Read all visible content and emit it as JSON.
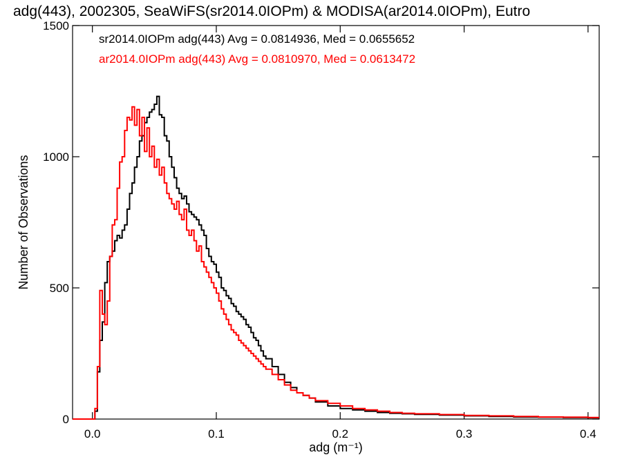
{
  "chart_data": {
    "type": "line",
    "title": "adg(443), 2002305, SeaWiFS(sr2014.0IOPm) & MODISA(ar2014.0IOPm), Eutro",
    "xlabel": "adg (m⁻¹)",
    "ylabel": "Number of Observations",
    "xlim": [
      -0.016,
      0.409
    ],
    "ylim": [
      0,
      1500
    ],
    "x_ticks": [
      0.0,
      0.1,
      0.2,
      0.3,
      0.4
    ],
    "x_tick_labels": [
      "0.0",
      "0.1",
      "0.2",
      "0.3",
      "0.4"
    ],
    "y_ticks": [
      0,
      500,
      1000,
      1500
    ],
    "y_tick_labels": [
      "0",
      "500",
      "1000",
      "1500"
    ],
    "grid": false,
    "legend_position": "top-left",
    "series": [
      {
        "name": "sr2014.0IOPm adg(443) Avg = 0.0814936, Med = 0.0655652",
        "color": "#000000",
        "x": [
          -0.016,
          0.0,
          0.002,
          0.004,
          0.006,
          0.008,
          0.01,
          0.012,
          0.014,
          0.016,
          0.018,
          0.02,
          0.022,
          0.024,
          0.026,
          0.028,
          0.03,
          0.032,
          0.034,
          0.036,
          0.038,
          0.04,
          0.042,
          0.044,
          0.046,
          0.048,
          0.05,
          0.052,
          0.054,
          0.056,
          0.058,
          0.06,
          0.062,
          0.064,
          0.066,
          0.068,
          0.07,
          0.072,
          0.074,
          0.076,
          0.078,
          0.08,
          0.082,
          0.084,
          0.086,
          0.088,
          0.09,
          0.092,
          0.094,
          0.096,
          0.098,
          0.1,
          0.102,
          0.104,
          0.106,
          0.108,
          0.11,
          0.112,
          0.114,
          0.116,
          0.118,
          0.12,
          0.122,
          0.124,
          0.126,
          0.128,
          0.13,
          0.132,
          0.134,
          0.136,
          0.138,
          0.14,
          0.145,
          0.15,
          0.155,
          0.16,
          0.165,
          0.17,
          0.175,
          0.18,
          0.19,
          0.2,
          0.21,
          0.22,
          0.23,
          0.24,
          0.25,
          0.26,
          0.28,
          0.3,
          0.32,
          0.34,
          0.36,
          0.38,
          0.4,
          0.409
        ],
        "values": [
          0,
          0,
          30,
          180,
          300,
          370,
          520,
          600,
          620,
          640,
          680,
          700,
          690,
          720,
          740,
          800,
          860,
          900,
          960,
          1000,
          1060,
          1080,
          1130,
          1150,
          1170,
          1180,
          1200,
          1230,
          1160,
          1150,
          1080,
          1060,
          1000,
          960,
          920,
          880,
          860,
          840,
          850,
          820,
          790,
          780,
          770,
          760,
          740,
          720,
          700,
          650,
          620,
          600,
          590,
          560,
          540,
          500,
          490,
          470,
          460,
          440,
          430,
          410,
          400,
          390,
          380,
          360,
          350,
          330,
          310,
          300,
          280,
          260,
          240,
          230,
          200,
          170,
          140,
          120,
          100,
          90,
          80,
          65,
          50,
          40,
          35,
          30,
          25,
          22,
          20,
          18,
          15,
          12,
          10,
          8,
          7,
          6,
          5,
          5
        ]
      },
      {
        "name": "ar2014.0IOPm adg(443) Avg = 0.0810970, Med = 0.0613472",
        "color": "#ff0000",
        "x": [
          -0.016,
          0.0,
          0.002,
          0.004,
          0.006,
          0.008,
          0.01,
          0.012,
          0.014,
          0.016,
          0.018,
          0.02,
          0.022,
          0.024,
          0.026,
          0.028,
          0.03,
          0.032,
          0.034,
          0.036,
          0.038,
          0.04,
          0.042,
          0.044,
          0.046,
          0.048,
          0.05,
          0.052,
          0.054,
          0.056,
          0.058,
          0.06,
          0.062,
          0.064,
          0.066,
          0.068,
          0.07,
          0.072,
          0.074,
          0.076,
          0.078,
          0.08,
          0.082,
          0.084,
          0.086,
          0.088,
          0.09,
          0.092,
          0.094,
          0.096,
          0.098,
          0.1,
          0.102,
          0.104,
          0.106,
          0.108,
          0.11,
          0.112,
          0.114,
          0.116,
          0.118,
          0.12,
          0.122,
          0.124,
          0.126,
          0.128,
          0.13,
          0.132,
          0.134,
          0.136,
          0.138,
          0.14,
          0.145,
          0.15,
          0.155,
          0.16,
          0.165,
          0.17,
          0.175,
          0.18,
          0.19,
          0.2,
          0.21,
          0.22,
          0.23,
          0.24,
          0.25,
          0.26,
          0.28,
          0.3,
          0.32,
          0.34,
          0.36,
          0.38,
          0.4,
          0.409
        ],
        "values": [
          0,
          0,
          40,
          200,
          490,
          400,
          360,
          450,
          620,
          740,
          760,
          880,
          980,
          1000,
          1100,
          1150,
          1140,
          1190,
          1120,
          1180,
          1080,
          1150,
          1020,
          1110,
          1000,
          1040,
          960,
          990,
          930,
          960,
          900,
          860,
          840,
          820,
          800,
          830,
          780,
          760,
          800,
          720,
          700,
          720,
          680,
          640,
          660,
          600,
          580,
          560,
          540,
          520,
          500,
          480,
          450,
          420,
          400,
          380,
          360,
          340,
          330,
          320,
          300,
          290,
          280,
          270,
          260,
          250,
          240,
          230,
          220,
          210,
          200,
          190,
          170,
          150,
          130,
          110,
          100,
          90,
          80,
          70,
          60,
          50,
          40,
          35,
          30,
          25,
          22,
          20,
          17,
          14,
          12,
          10,
          8,
          7,
          6,
          6
        ]
      }
    ]
  }
}
